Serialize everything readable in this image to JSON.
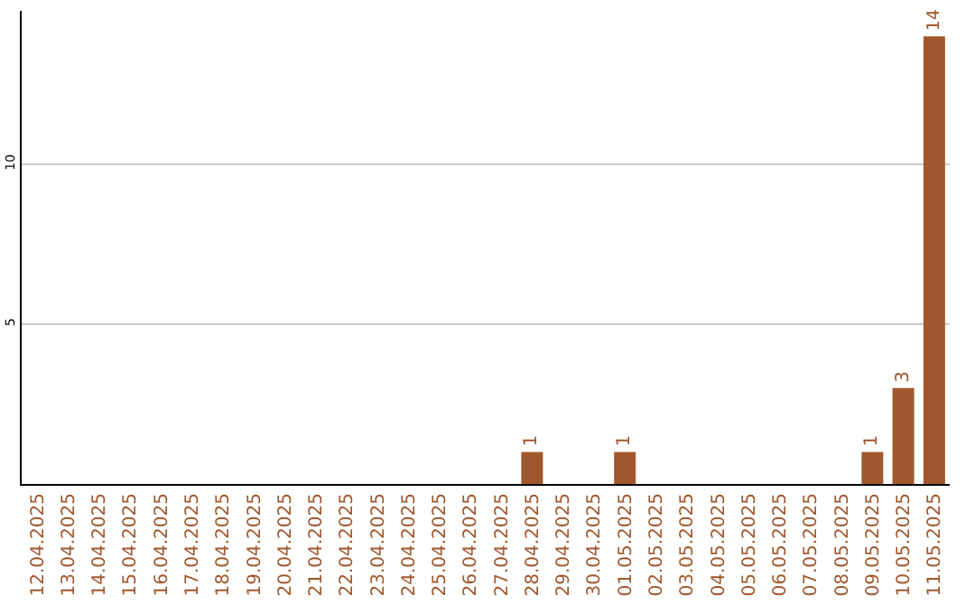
{
  "chart_data": {
    "type": "bar",
    "categories": [
      "12.04.2025",
      "13.04.2025",
      "14.04.2025",
      "15.04.2025",
      "16.04.2025",
      "17.04.2025",
      "18.04.2025",
      "19.04.2025",
      "20.04.2025",
      "21.04.2025",
      "22.04.2025",
      "23.04.2025",
      "24.04.2025",
      "25.04.2025",
      "26.04.2025",
      "27.04.2025",
      "28.04.2025",
      "29.04.2025",
      "30.04.2025",
      "01.05.2025",
      "02.05.2025",
      "03.05.2025",
      "04.05.2025",
      "05.05.2025",
      "06.05.2025",
      "07.05.2025",
      "08.05.2025",
      "09.05.2025",
      "10.05.2025",
      "11.05.2025"
    ],
    "values": [
      0,
      0,
      0,
      0,
      0,
      0,
      0,
      0,
      0,
      0,
      0,
      0,
      0,
      0,
      0,
      0,
      1,
      0,
      0,
      1,
      0,
      0,
      0,
      0,
      0,
      0,
      0,
      1,
      3,
      14
    ],
    "color": "#a0572d",
    "value_labels": [
      null,
      null,
      null,
      null,
      null,
      null,
      null,
      null,
      null,
      null,
      null,
      null,
      null,
      null,
      null,
      null,
      "1",
      null,
      null,
      "1",
      null,
      null,
      null,
      null,
      null,
      null,
      null,
      "1",
      "3",
      "14"
    ],
    "ylim": [
      0,
      14.8
    ],
    "yticks": [
      5,
      10
    ],
    "grid": "y",
    "legend": false
  }
}
